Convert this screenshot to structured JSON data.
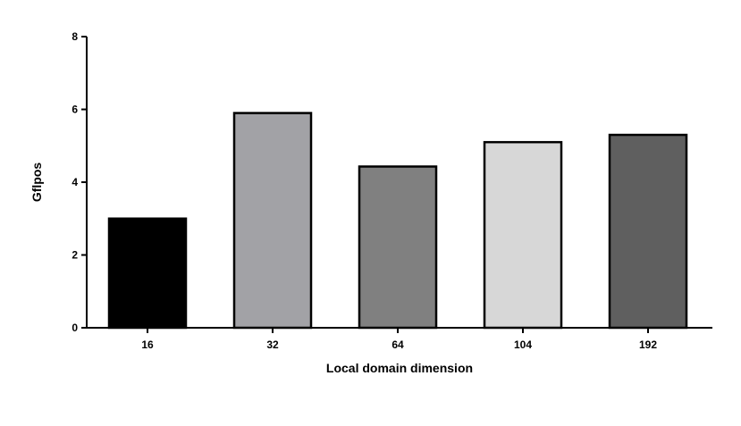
{
  "chart_data": {
    "type": "bar",
    "title": "",
    "xlabel": "Local domain dimension",
    "ylabel": "Gflpos",
    "categories": [
      "16",
      "32",
      "64",
      "104",
      "192"
    ],
    "values": [
      3.0,
      5.9,
      4.43,
      5.1,
      5.3
    ],
    "bar_colors": [
      "#000000",
      "#a2a2a6",
      "#808080",
      "#d7d7d7",
      "#5f5f5f"
    ],
    "bar_outline_color": "#000000",
    "ylim": [
      0,
      8
    ],
    "yticks": [
      0,
      2,
      4,
      6,
      8
    ],
    "grid": false,
    "legend": "none"
  }
}
